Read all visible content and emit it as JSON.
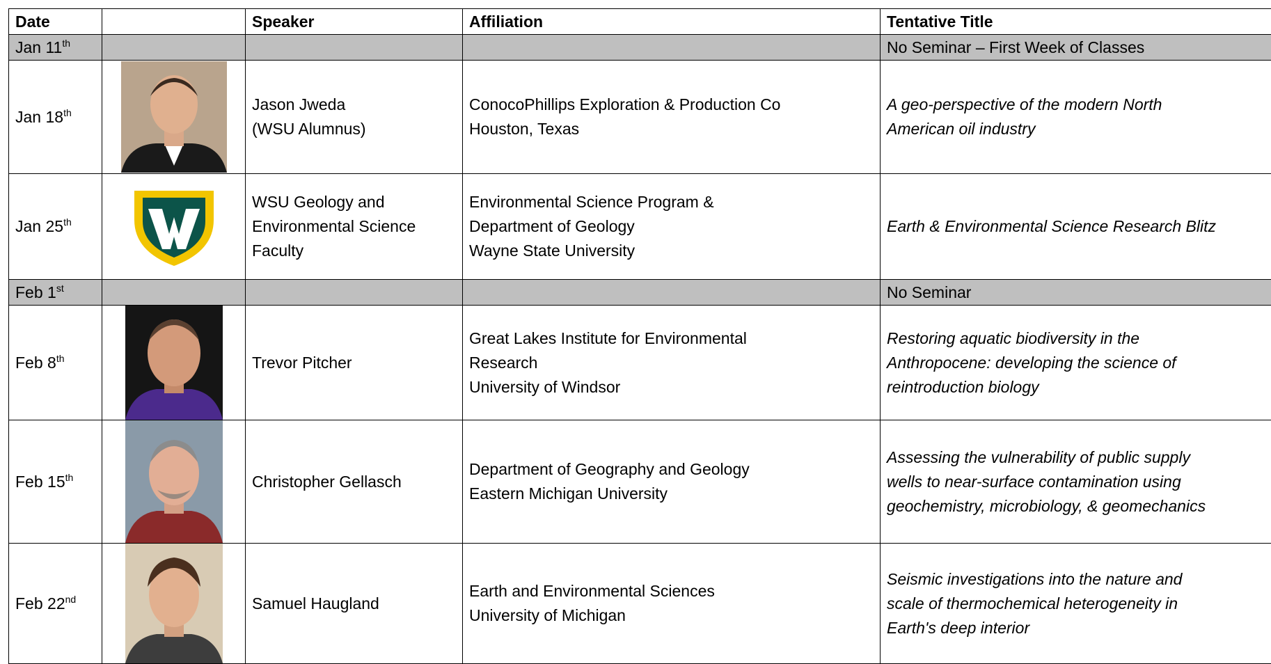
{
  "header": {
    "date": "Date",
    "speaker": "Speaker",
    "affiliation": "Affiliation",
    "title": "Tentative Title"
  },
  "rows": [
    {
      "date": "Jan 11",
      "suffix": "th",
      "title": [
        "No Seminar – First Week of Classes"
      ]
    },
    {
      "date": "Jan 18",
      "suffix": "th",
      "speaker": [
        "Jason Jweda",
        "(WSU Alumnus)"
      ],
      "affiliation": [
        "ConocoPhillips Exploration & Production Co",
        "Houston, Texas"
      ],
      "title": [
        "A geo-perspective of the modern North",
        "American oil industry"
      ]
    },
    {
      "date": "Jan 25",
      "suffix": "th",
      "speaker": [
        "WSU Geology and",
        "Environmental Science",
        "Faculty"
      ],
      "affiliation": [
        "Environmental Science Program &",
        "Department of Geology",
        "Wayne State University"
      ],
      "title": [
        "Earth & Environmental Science Research Blitz"
      ]
    },
    {
      "date": "Feb 1",
      "suffix": "st",
      "title": [
        "No Seminar"
      ]
    },
    {
      "date": "Feb 8",
      "suffix": "th",
      "speaker": [
        "Trevor Pitcher"
      ],
      "affiliation": [
        "Great Lakes Institute for Environmental",
        "Research",
        "University of Windsor"
      ],
      "title": [
        "Restoring aquatic biodiversity in the",
        "Anthropocene: developing the science of",
        "reintroduction biology"
      ]
    },
    {
      "date": "Feb 15",
      "suffix": "th",
      "speaker": [
        "Christopher Gellasch"
      ],
      "affiliation": [
        "Department of Geography and Geology",
        "Eastern Michigan University"
      ],
      "title": [
        "Assessing the vulnerability of public supply",
        "wells to near-surface contamination using",
        "geochemistry, microbiology, & geomechanics"
      ]
    },
    {
      "date": "Feb 22",
      "suffix": "nd",
      "speaker": [
        "Samuel Haugland"
      ],
      "affiliation": [
        "Earth and Environmental Sciences",
        "University of Michigan"
      ],
      "title": [
        "Seismic investigations into the nature and",
        "scale of thermochemical heterogeneity in",
        "Earth's deep interior"
      ]
    }
  ]
}
